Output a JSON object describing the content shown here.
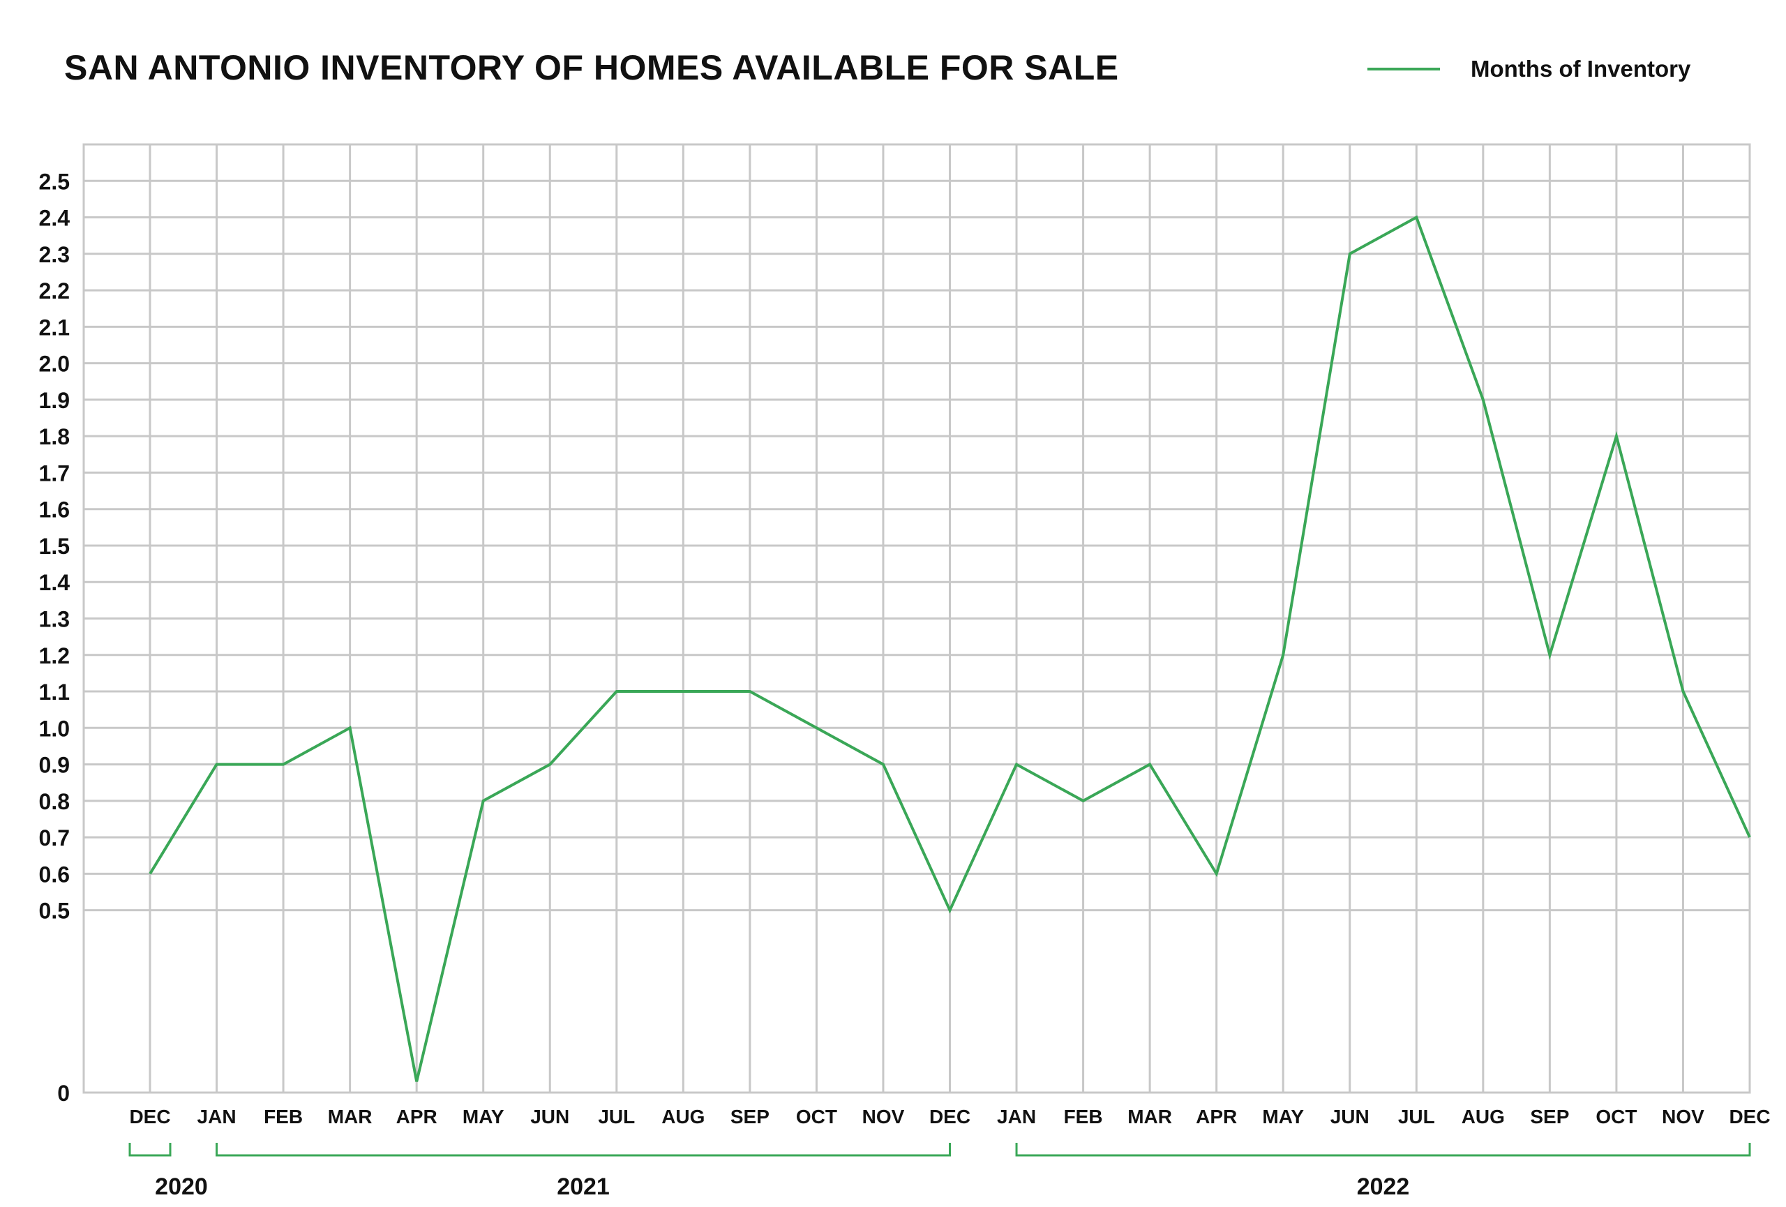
{
  "chart_data": {
    "type": "line",
    "title": "SAN ANTONIO INVENTORY OF HOMES AVAILABLE FOR SALE",
    "xlabel": "",
    "ylabel": "",
    "categories": [
      "DEC",
      "JAN",
      "FEB",
      "MAR",
      "APR",
      "MAY",
      "JUN",
      "JUL",
      "AUG",
      "SEP",
      "OCT",
      "NOV",
      "DEC",
      "JAN",
      "FEB",
      "MAR",
      "APR",
      "MAY",
      "JUN",
      "JUL",
      "AUG",
      "SEP",
      "OCT",
      "NOV",
      "DEC"
    ],
    "series": [
      {
        "name": "Months of Inventory",
        "color": "#3aa757",
        "values": [
          0.6,
          0.9,
          0.9,
          1.0,
          0.03,
          0.8,
          0.9,
          1.1,
          1.1,
          1.1,
          1.0,
          0.9,
          0.5,
          0.9,
          0.8,
          0.9,
          0.6,
          1.2,
          2.3,
          2.4,
          1.9,
          1.2,
          1.8,
          1.1,
          0.7
        ]
      }
    ],
    "ylim": [
      0,
      2.6
    ],
    "yticks": [
      "0",
      "0.5",
      "0.6",
      "0.7",
      "0.8",
      "0.9",
      "1.0",
      "1.1",
      "1.2",
      "1.3",
      "1.4",
      "1.5",
      "1.6",
      "1.7",
      "1.8",
      "1.9",
      "2.0",
      "2.1",
      "2.2",
      "2.3",
      "2.4",
      "2.5"
    ],
    "year_groups": [
      {
        "label": "2020",
        "start": 0,
        "end": 0
      },
      {
        "label": "2021",
        "start": 1,
        "end": 12
      },
      {
        "label": "2022",
        "start": 13,
        "end": 24
      }
    ],
    "grid": true,
    "legend_position": "top-right",
    "colors": {
      "line": "#3aa757",
      "grid": "#c8c8c8",
      "text": "#111111"
    }
  }
}
